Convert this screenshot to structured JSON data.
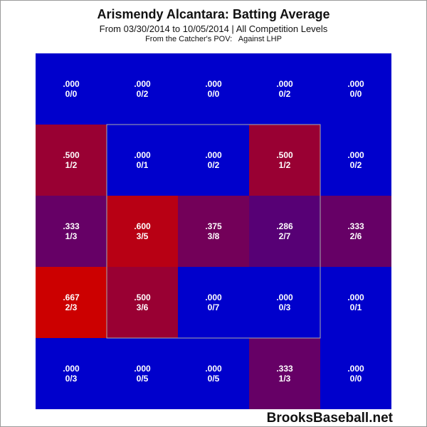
{
  "title": "Arismendy Alcantara: Batting Average",
  "subtitle": "From 03/30/2014 to 10/05/2014 | All Competition Levels",
  "pov": "From the Catcher's POV:   Against LHP",
  "watermark": "BrooksBaseball.net",
  "colors": {
    "low": "#0000cc",
    "high": "#cc0000",
    "zone_border": "#aaaaaa",
    "text": "#ffffff"
  },
  "chart_data": {
    "type": "heatmap",
    "title": "Arismendy Alcantara: Batting Average",
    "rows": 5,
    "cols": 5,
    "strike_zone": "inner 3x3",
    "cells": [
      [
        {
          "avg": ".000",
          "ratio": "0/0",
          "value": 0.0
        },
        {
          "avg": ".000",
          "ratio": "0/2",
          "value": 0.0
        },
        {
          "avg": ".000",
          "ratio": "0/0",
          "value": 0.0
        },
        {
          "avg": ".000",
          "ratio": "0/2",
          "value": 0.0
        },
        {
          "avg": ".000",
          "ratio": "0/0",
          "value": 0.0
        }
      ],
      [
        {
          "avg": ".500",
          "ratio": "1/2",
          "value": 0.5
        },
        {
          "avg": ".000",
          "ratio": "0/1",
          "value": 0.0
        },
        {
          "avg": ".000",
          "ratio": "0/2",
          "value": 0.0
        },
        {
          "avg": ".500",
          "ratio": "1/2",
          "value": 0.5
        },
        {
          "avg": ".000",
          "ratio": "0/2",
          "value": 0.0
        }
      ],
      [
        {
          "avg": ".333",
          "ratio": "1/3",
          "value": 0.333
        },
        {
          "avg": ".600",
          "ratio": "3/5",
          "value": 0.6
        },
        {
          "avg": ".375",
          "ratio": "3/8",
          "value": 0.375
        },
        {
          "avg": ".286",
          "ratio": "2/7",
          "value": 0.286
        },
        {
          "avg": ".333",
          "ratio": "2/6",
          "value": 0.333
        }
      ],
      [
        {
          "avg": ".667",
          "ratio": "2/3",
          "value": 0.667
        },
        {
          "avg": ".500",
          "ratio": "3/6",
          "value": 0.5
        },
        {
          "avg": ".000",
          "ratio": "0/7",
          "value": 0.0
        },
        {
          "avg": ".000",
          "ratio": "0/3",
          "value": 0.0
        },
        {
          "avg": ".000",
          "ratio": "0/1",
          "value": 0.0
        }
      ],
      [
        {
          "avg": ".000",
          "ratio": "0/3",
          "value": 0.0
        },
        {
          "avg": ".000",
          "ratio": "0/5",
          "value": 0.0
        },
        {
          "avg": ".000",
          "ratio": "0/5",
          "value": 0.0
        },
        {
          "avg": ".333",
          "ratio": "1/3",
          "value": 0.333
        },
        {
          "avg": ".000",
          "ratio": "0/0",
          "value": 0.0
        }
      ]
    ]
  }
}
